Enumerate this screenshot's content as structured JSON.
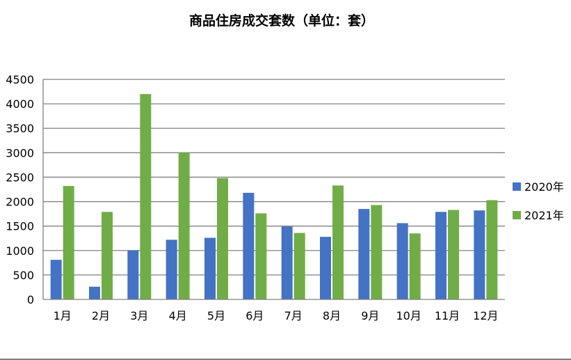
{
  "chart_data": {
    "type": "bar",
    "title": "商品住房成交套数（单位：套）",
    "xlabel": "",
    "ylabel": "",
    "categories": [
      "1月",
      "2月",
      "3月",
      "4月",
      "5月",
      "6月",
      "7月",
      "8月",
      "9月",
      "10月",
      "11月",
      "12月"
    ],
    "series": [
      {
        "name": "2020年",
        "color": "#4472C4",
        "values": [
          810,
          260,
          1000,
          1220,
          1260,
          2180,
          1490,
          1280,
          1850,
          1560,
          1790,
          1820
        ]
      },
      {
        "name": "2021年",
        "color": "#70AD47",
        "values": [
          2320,
          1790,
          4200,
          3000,
          2480,
          1760,
          1360,
          2330,
          1930,
          1350,
          1830,
          2030
        ]
      }
    ],
    "ylim": [
      0,
      4500
    ],
    "yticks": [
      0,
      500,
      1000,
      1500,
      2000,
      2500,
      3000,
      3500,
      4000,
      4500
    ],
    "grid": true,
    "legend_position": "right"
  }
}
